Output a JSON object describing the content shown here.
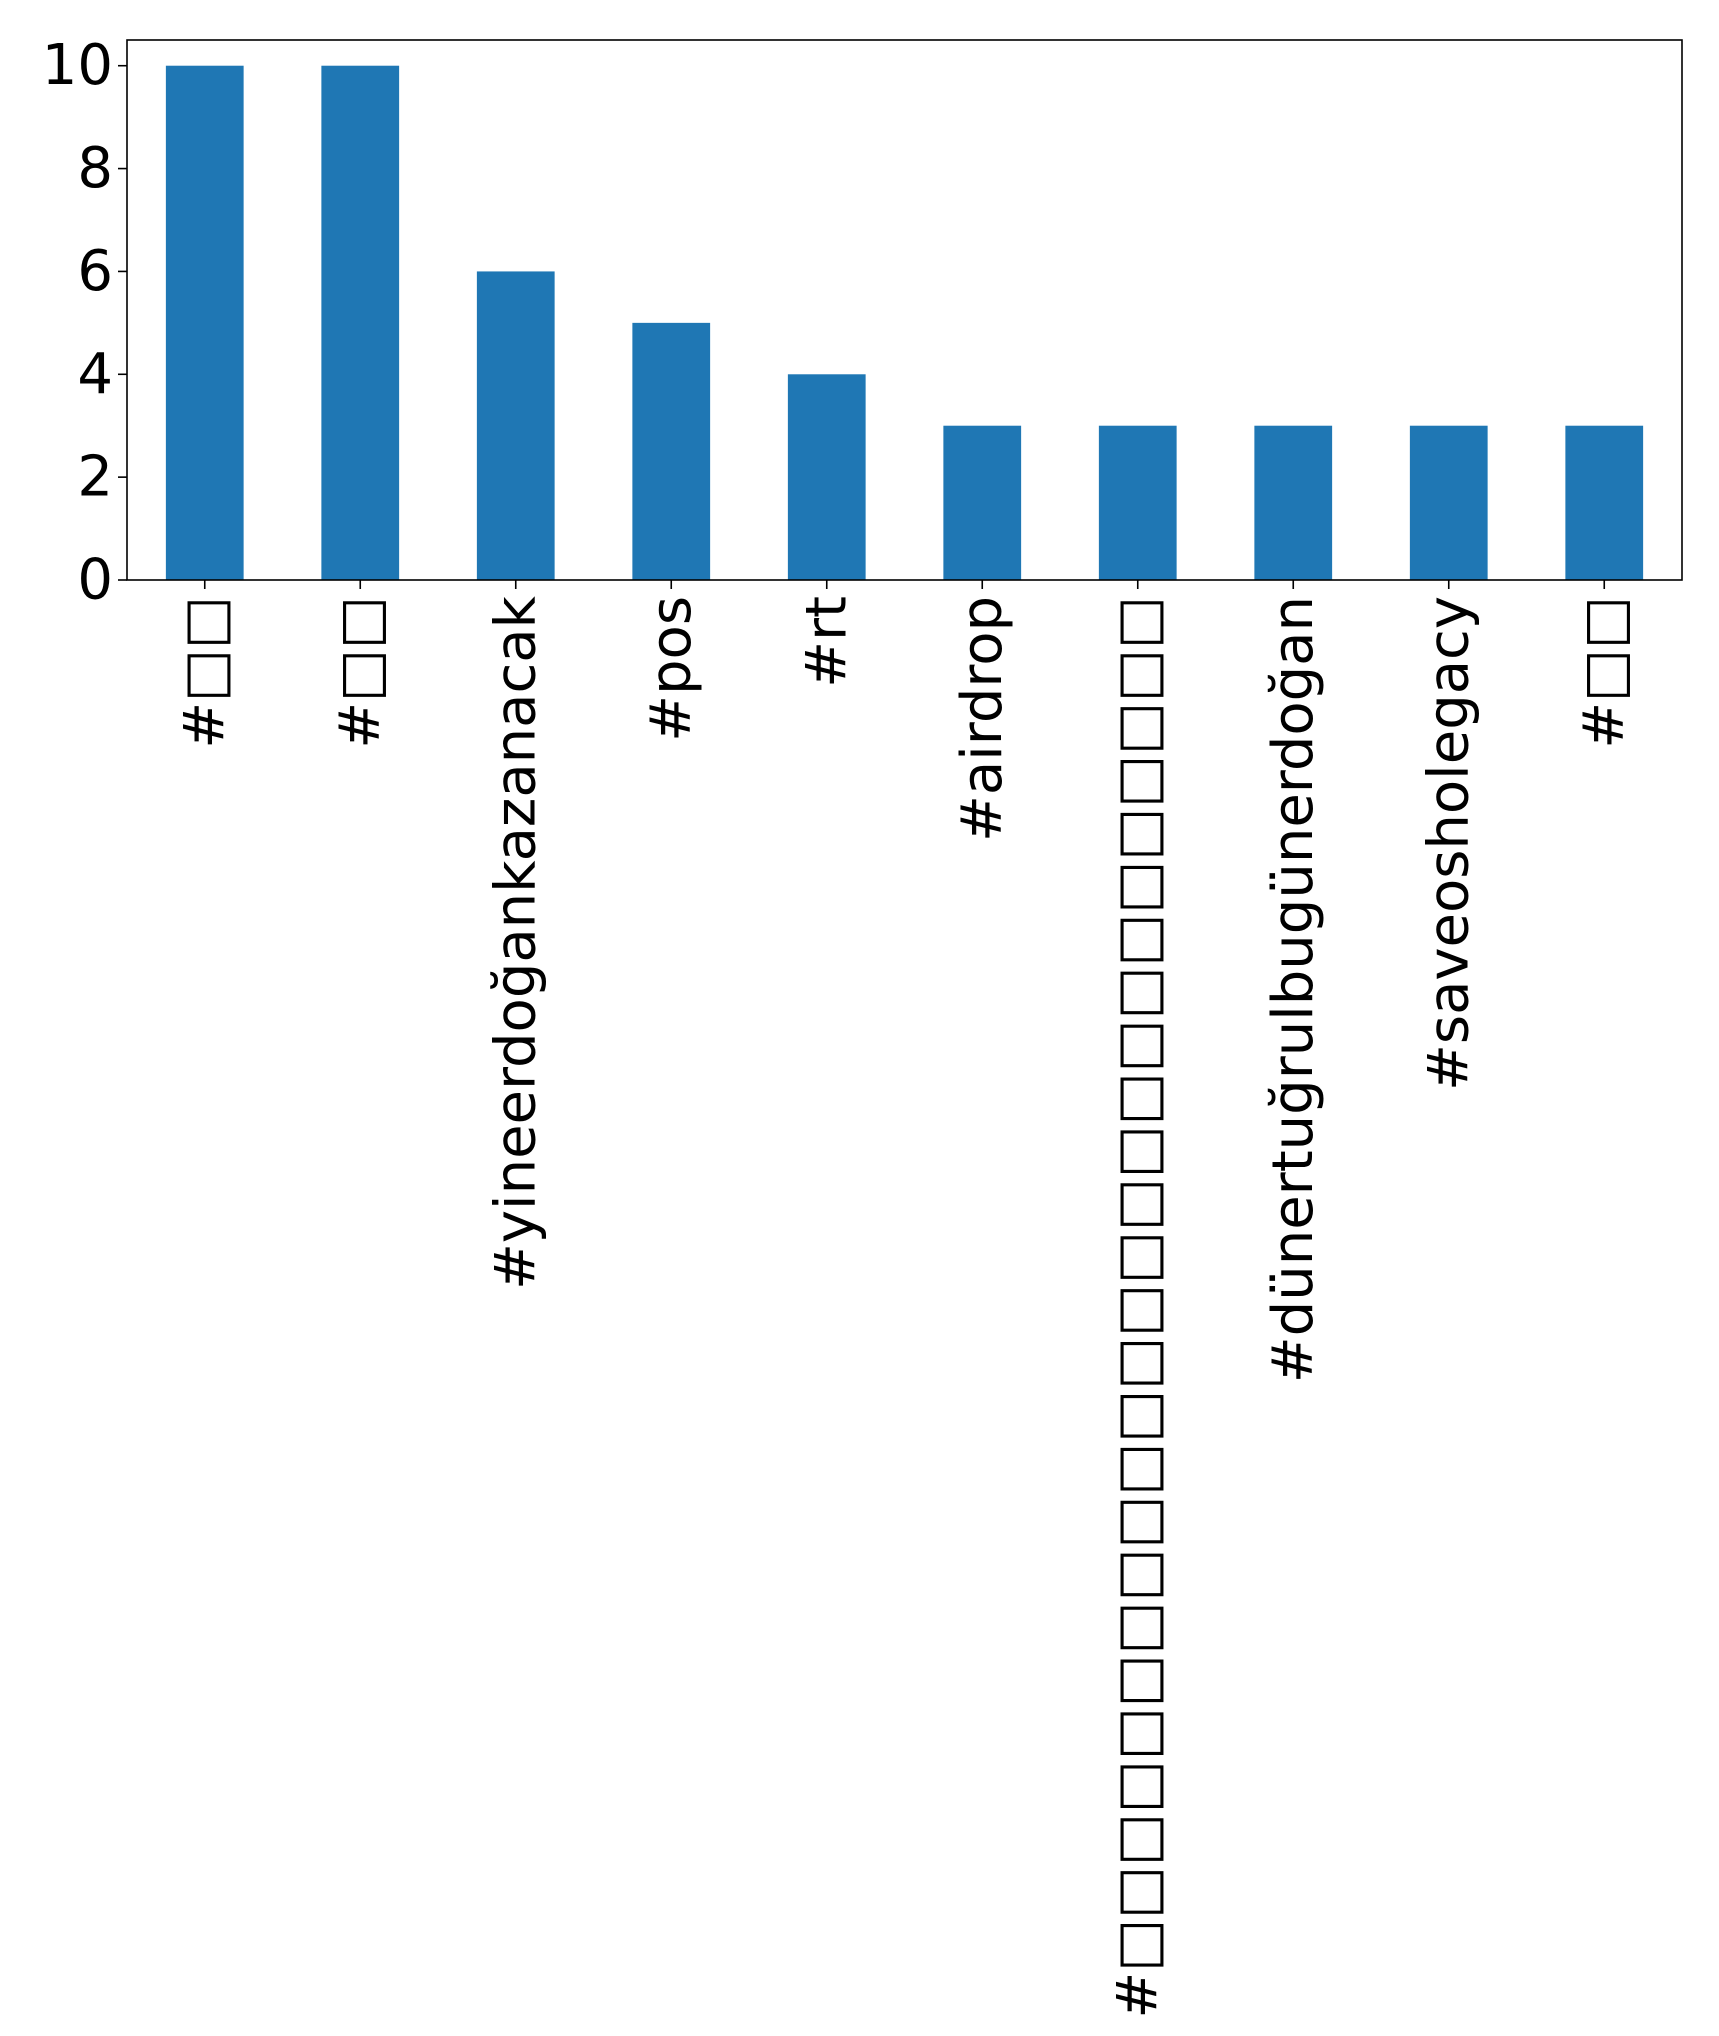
{
  "chart_data": {
    "type": "bar",
    "title": "",
    "xlabel": "",
    "ylabel": "",
    "categories": [
      "#□□",
      "#□□",
      "#yineerdoğankazanacak",
      "#pos",
      "#rt",
      "#airdrop",
      "#□□□□□□□□□□□□□□□□□□□□□□□□□□",
      "#dünertuğrulbugünerdoğan",
      "#saveosholegacy",
      "#□□"
    ],
    "values": [
      10,
      10,
      6,
      5,
      4,
      3,
      3,
      3,
      3,
      3
    ],
    "ylim": [
      0,
      10.5
    ],
    "yticks": [
      0,
      2,
      4,
      6,
      8,
      10
    ],
    "bar_color": "#1f77b4",
    "grid": false,
    "legend": "none"
  }
}
